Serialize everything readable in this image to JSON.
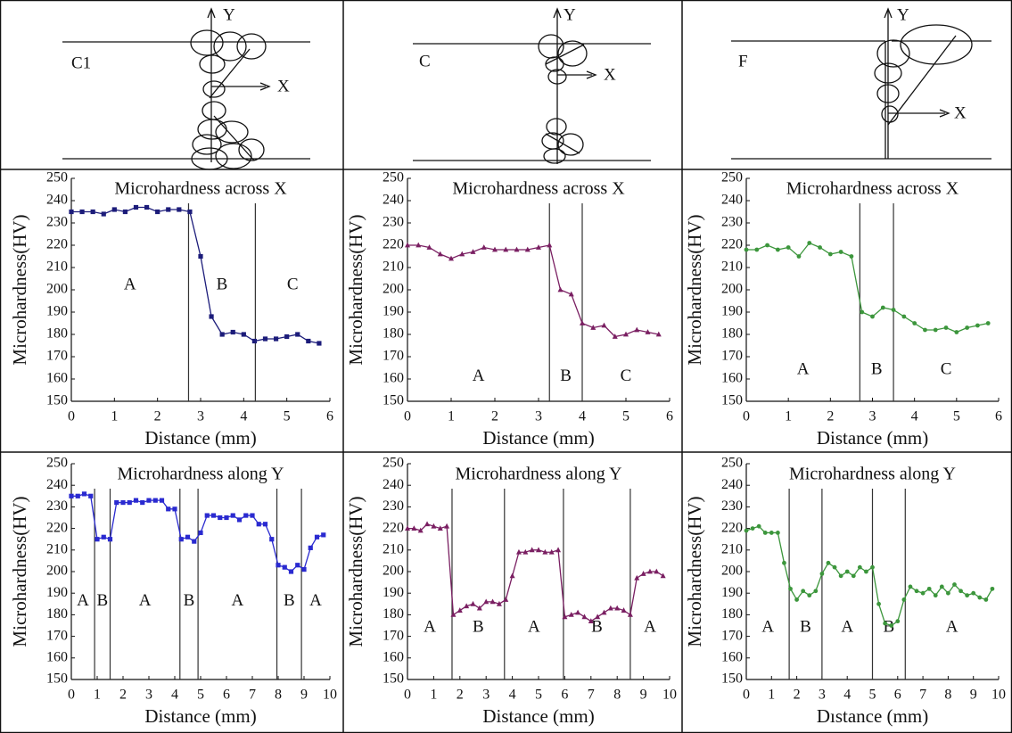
{
  "diagrams": [
    {
      "label": "C1",
      "y_axis": "Y",
      "x_axis": "X"
    },
    {
      "label": "C",
      "y_axis": "Y",
      "x_axis": "X"
    },
    {
      "label": "F",
      "y_axis": "Y",
      "x_axis": "X"
    }
  ],
  "chart_data": [
    {
      "type": "line",
      "title": "Microhardness across X",
      "x_label": "Distance (mm)",
      "y_label": "Microhardness(HV)",
      "color": "#1c1c7a",
      "marker": "square",
      "x": [
        0,
        0.25,
        0.5,
        0.75,
        1,
        1.25,
        1.5,
        1.75,
        2,
        2.25,
        2.5,
        2.75,
        3,
        3.25,
        3.5,
        3.75,
        4,
        4.25,
        4.5,
        4.75,
        5,
        5.25,
        5.5,
        5.75
      ],
      "values": [
        235,
        235,
        235,
        234,
        236,
        235,
        237,
        237,
        235,
        236,
        236,
        235,
        215,
        188,
        180,
        181,
        180,
        177,
        178,
        178,
        179,
        180,
        177,
        176
      ],
      "zone_boundaries": [
        2.72,
        4.27
      ],
      "zones": [
        "A",
        "B",
        "C"
      ],
      "xlim": [
        0,
        6
      ],
      "xticks": [
        0,
        1,
        2,
        3,
        4,
        5,
        6
      ],
      "ylim": [
        150,
        250
      ],
      "yticks": [
        150,
        160,
        170,
        180,
        190,
        200,
        210,
        220,
        230,
        240,
        250
      ]
    },
    {
      "type": "line",
      "title": "Microhardness across X",
      "x_label": "Distance (mm)",
      "y_label": "Microhardness(HV)",
      "color": "#7a1f62",
      "marker": "triangle",
      "x": [
        0,
        0.25,
        0.5,
        0.75,
        1,
        1.25,
        1.5,
        1.75,
        2,
        2.25,
        2.5,
        2.75,
        3,
        3.25,
        3.5,
        3.75,
        4,
        4.25,
        4.5,
        4.75,
        5,
        5.25,
        5.5,
        5.75
      ],
      "values": [
        220,
        220,
        219,
        216,
        214,
        216,
        217,
        219,
        218,
        218,
        218,
        218,
        219,
        220,
        200,
        198,
        185,
        183,
        184,
        179,
        180,
        182,
        181,
        180
      ],
      "zone_boundaries": [
        3.25,
        4.0
      ],
      "zones": [
        "A",
        "B",
        "C"
      ],
      "xlim": [
        0,
        6
      ],
      "xticks": [
        0,
        1,
        2,
        3,
        4,
        5,
        6
      ],
      "ylim": [
        150,
        250
      ],
      "yticks": [
        150,
        160,
        170,
        180,
        190,
        200,
        210,
        220,
        230,
        240,
        250
      ]
    },
    {
      "type": "line",
      "title": "Microhardness across X",
      "x_label": "Distance (mm)",
      "y_label": "Microhardness(HV)",
      "color": "#3c963c",
      "marker": "circle",
      "x": [
        0,
        0.25,
        0.5,
        0.75,
        1,
        1.25,
        1.5,
        1.75,
        2,
        2.25,
        2.5,
        2.75,
        3,
        3.25,
        3.5,
        3.75,
        4,
        4.25,
        4.5,
        4.75,
        5,
        5.25,
        5.5,
        5.75
      ],
      "values": [
        218,
        218,
        220,
        218,
        219,
        215,
        221,
        219,
        216,
        217,
        215,
        190,
        188,
        192,
        191,
        188,
        185,
        182,
        182,
        183,
        181,
        183,
        184,
        185
      ],
      "zone_boundaries": [
        2.7,
        3.5
      ],
      "zones": [
        "A",
        "B",
        "C"
      ],
      "xlim": [
        0,
        6
      ],
      "xticks": [
        0,
        1,
        2,
        3,
        4,
        5,
        6
      ],
      "ylim": [
        150,
        250
      ],
      "yticks": [
        150,
        160,
        170,
        180,
        190,
        200,
        210,
        220,
        230,
        240,
        250
      ]
    },
    {
      "type": "line",
      "title": "Microhardness along Y",
      "x_label": "Distance (mm)",
      "y_label": "Microhardness(HV)",
      "color": "#2a2ad0",
      "marker": "square",
      "x": [
        0,
        0.25,
        0.5,
        0.75,
        1,
        1.25,
        1.5,
        1.75,
        2,
        2.25,
        2.5,
        2.75,
        3,
        3.25,
        3.5,
        3.75,
        4,
        4.25,
        4.5,
        4.75,
        5,
        5.25,
        5.5,
        5.75,
        6,
        6.25,
        6.5,
        6.75,
        7,
        7.25,
        7.5,
        7.75,
        8,
        8.25,
        8.5,
        8.75,
        9,
        9.25,
        9.5,
        9.75
      ],
      "values": [
        235,
        235,
        236,
        235,
        215,
        216,
        215,
        232,
        232,
        232,
        233,
        232,
        233,
        233,
        233,
        229,
        229,
        215,
        216,
        214,
        218,
        226,
        226,
        225,
        225,
        226,
        224,
        226,
        226,
        222,
        222,
        215,
        203,
        202,
        200,
        203,
        201,
        211,
        216,
        217
      ],
      "zone_boundaries": [
        0.9,
        1.5,
        4.2,
        4.9,
        7.95,
        8.9
      ],
      "zones": [
        "A",
        "B",
        "A",
        "B",
        "A",
        "B",
        "A"
      ],
      "xlim": [
        0,
        10
      ],
      "xticks": [
        0,
        1,
        2,
        3,
        4,
        5,
        6,
        7,
        8,
        9,
        10
      ],
      "ylim": [
        150,
        250
      ],
      "yticks": [
        150,
        160,
        170,
        180,
        190,
        200,
        210,
        220,
        230,
        240,
        250
      ]
    },
    {
      "type": "line",
      "title": "Microhardness along Y",
      "x_label": "Distance (mm)",
      "y_label": "Microhardness(HV)",
      "color": "#7a1f62",
      "marker": "triangle",
      "x": [
        0,
        0.25,
        0.5,
        0.75,
        1,
        1.25,
        1.5,
        1.75,
        2,
        2.25,
        2.5,
        2.75,
        3,
        3.25,
        3.5,
        3.75,
        4,
        4.25,
        4.5,
        4.75,
        5,
        5.25,
        5.5,
        5.75,
        6,
        6.25,
        6.5,
        6.75,
        7,
        7.25,
        7.5,
        7.75,
        8,
        8.25,
        8.5,
        8.75,
        9,
        9.25,
        9.5,
        9.75
      ],
      "values": [
        220,
        220,
        219,
        222,
        221,
        220,
        221,
        180,
        182,
        184,
        185,
        183,
        186,
        186,
        185,
        187,
        198,
        209,
        209,
        210,
        210,
        209,
        209,
        210,
        179,
        180,
        181,
        179,
        177,
        179,
        181,
        183,
        183,
        182,
        180,
        197,
        199,
        200,
        200,
        198
      ],
      "zone_boundaries": [
        1.7,
        3.7,
        5.95,
        8.5
      ],
      "zones": [
        "A",
        "B",
        "A",
        "B",
        "A"
      ],
      "xlim": [
        0,
        10
      ],
      "xticks": [
        0,
        1,
        2,
        3,
        4,
        5,
        6,
        7,
        8,
        9,
        10
      ],
      "ylim": [
        150,
        250
      ],
      "yticks": [
        150,
        160,
        170,
        180,
        190,
        200,
        210,
        220,
        230,
        240,
        250
      ]
    },
    {
      "type": "line",
      "title": "Microhardness along Y",
      "x_label": "Dıstance (mm)",
      "y_label": "Microhardness(HV)",
      "color": "#3c963c",
      "marker": "circle",
      "x": [
        0,
        0.25,
        0.5,
        0.75,
        1,
        1.25,
        1.5,
        1.75,
        2,
        2.25,
        2.5,
        2.75,
        3,
        3.25,
        3.5,
        3.75,
        4,
        4.25,
        4.5,
        4.75,
        5,
        5.25,
        5.5,
        5.75,
        6,
        6.25,
        6.5,
        6.75,
        7,
        7.25,
        7.5,
        7.75,
        8,
        8.25,
        8.5,
        8.75,
        9,
        9.25,
        9.5,
        9.75
      ],
      "values": [
        219,
        220,
        221,
        218,
        218,
        218,
        204,
        192,
        187,
        191,
        189,
        191,
        199,
        204,
        202,
        198,
        200,
        198,
        202,
        200,
        202,
        185,
        176,
        175,
        177,
        187,
        193,
        191,
        190,
        192,
        189,
        193,
        190,
        194,
        191,
        189,
        190,
        188,
        187,
        192
      ],
      "zone_boundaries": [
        1.7,
        3.0,
        5.0,
        6.3
      ],
      "zones": [
        "A",
        "B",
        "A",
        "B",
        "A"
      ],
      "xlim": [
        0,
        10
      ],
      "xticks": [
        0,
        1,
        2,
        3,
        4,
        5,
        6,
        7,
        8,
        9,
        10
      ],
      "ylim": [
        150,
        250
      ],
      "yticks": [
        150,
        160,
        170,
        180,
        190,
        200,
        210,
        220,
        230,
        240,
        250
      ]
    }
  ]
}
